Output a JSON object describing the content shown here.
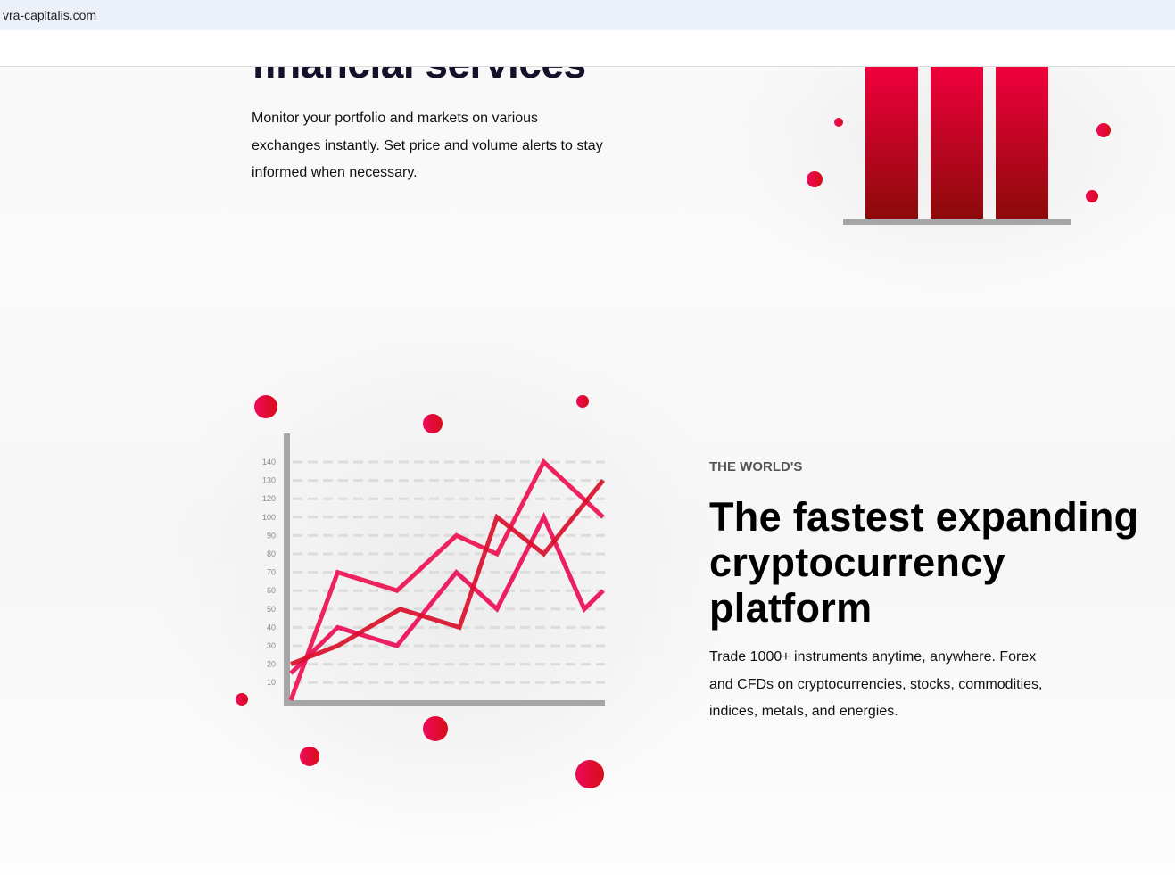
{
  "browser": {
    "url": "vra-capitalis.com"
  },
  "section1": {
    "heading": "financial services",
    "body_lines": [
      "Monitor your portfolio and markets on various",
      "exchanges instantly. Set price and volume alerts to stay",
      "informed when necessary."
    ]
  },
  "section2": {
    "eyebrow": "THE WORLD'S",
    "heading_lines": [
      "The fastest expanding",
      "cryptocurrency",
      "platform"
    ],
    "body_lines": [
      "Trade 1000+ instruments anytime, anywhere. Forex",
      "and CFDs on cryptocurrencies, stocks, commodities,",
      "indices, metals, and energies."
    ]
  },
  "colors": {
    "accent": "#e8003c",
    "dark_red": "#d40a14",
    "axis": "#a6a6a6",
    "grid": "#dcdcdc"
  },
  "chart_data": {
    "type": "line",
    "y_tick_labels": [
      "140",
      "130",
      "120",
      "100",
      "90",
      "80",
      "70",
      "60",
      "50",
      "40",
      "30",
      "20",
      "10"
    ],
    "grid": true,
    "x": [
      0,
      15,
      34,
      53,
      66,
      81,
      94,
      100
    ],
    "series": [
      {
        "color": "#ee1150",
        "points": [
          [
            0,
            0
          ],
          [
            15,
            70
          ],
          [
            34,
            60
          ],
          [
            53,
            90
          ],
          [
            66,
            80
          ],
          [
            81,
            140
          ],
          [
            100,
            100
          ]
        ]
      },
      {
        "color": "#ea0d55",
        "points": [
          [
            0,
            15
          ],
          [
            15,
            40
          ],
          [
            34,
            30
          ],
          [
            53,
            70
          ],
          [
            66,
            50
          ],
          [
            81,
            100
          ],
          [
            94,
            50
          ],
          [
            100,
            60
          ]
        ]
      },
      {
        "color": "#d8102a",
        "points": [
          [
            0,
            20
          ],
          [
            15,
            30
          ],
          [
            35,
            50
          ],
          [
            54,
            40
          ],
          [
            66,
            100
          ],
          [
            81,
            80
          ],
          [
            100,
            130
          ]
        ]
      }
    ]
  }
}
